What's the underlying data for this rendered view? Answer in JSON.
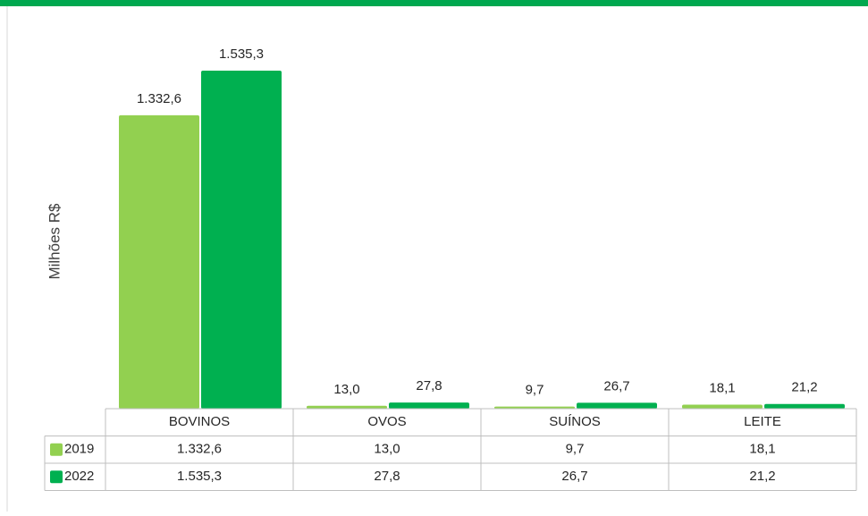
{
  "chart_data": {
    "type": "bar",
    "y_axis_label": "Milhões R$",
    "categories": [
      "BOVINOS",
      "OVOS",
      "SUÍNOS",
      "LEITE"
    ],
    "series": [
      {
        "name": "2019",
        "color": "#92d050",
        "values": [
          1332.6,
          13.0,
          9.7,
          18.1
        ],
        "value_labels": [
          "1.332,6",
          "13,0",
          "9,7",
          "18,1"
        ]
      },
      {
        "name": "2022",
        "color": "#00b050",
        "values": [
          1535.3,
          27.8,
          26.7,
          21.2
        ],
        "value_labels": [
          "1.535,3",
          "27,8",
          "26,7",
          "21,2"
        ]
      }
    ],
    "data_table": true
  }
}
